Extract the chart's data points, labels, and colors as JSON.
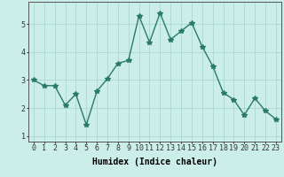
{
  "xlabel": "Humidex (Indice chaleur)",
  "x": [
    0,
    1,
    2,
    3,
    4,
    5,
    6,
    7,
    8,
    9,
    10,
    11,
    12,
    13,
    14,
    15,
    16,
    17,
    18,
    19,
    20,
    21,
    22,
    23
  ],
  "y": [
    3.0,
    2.8,
    2.8,
    2.1,
    2.5,
    1.4,
    2.6,
    3.05,
    3.6,
    3.7,
    5.3,
    4.35,
    5.4,
    4.45,
    4.75,
    5.05,
    4.2,
    3.5,
    2.55,
    2.3,
    1.75,
    2.35,
    1.9,
    1.6
  ],
  "line_color": "#2a7a6a",
  "marker": "*",
  "marker_size": 4,
  "line_width": 1.0,
  "background_color": "#cceee8",
  "grid_color": "#aad8d0",
  "ylim": [
    0.8,
    5.8
  ],
  "yticks": [
    1,
    2,
    3,
    4,
    5
  ],
  "xlim": [
    -0.5,
    23.5
  ],
  "xticks": [
    0,
    1,
    2,
    3,
    4,
    5,
    6,
    7,
    8,
    9,
    10,
    11,
    12,
    13,
    14,
    15,
    16,
    17,
    18,
    19,
    20,
    21,
    22,
    23
  ],
  "xlabel_fontsize": 7,
  "tick_fontsize": 6,
  "spine_color": "#555555"
}
